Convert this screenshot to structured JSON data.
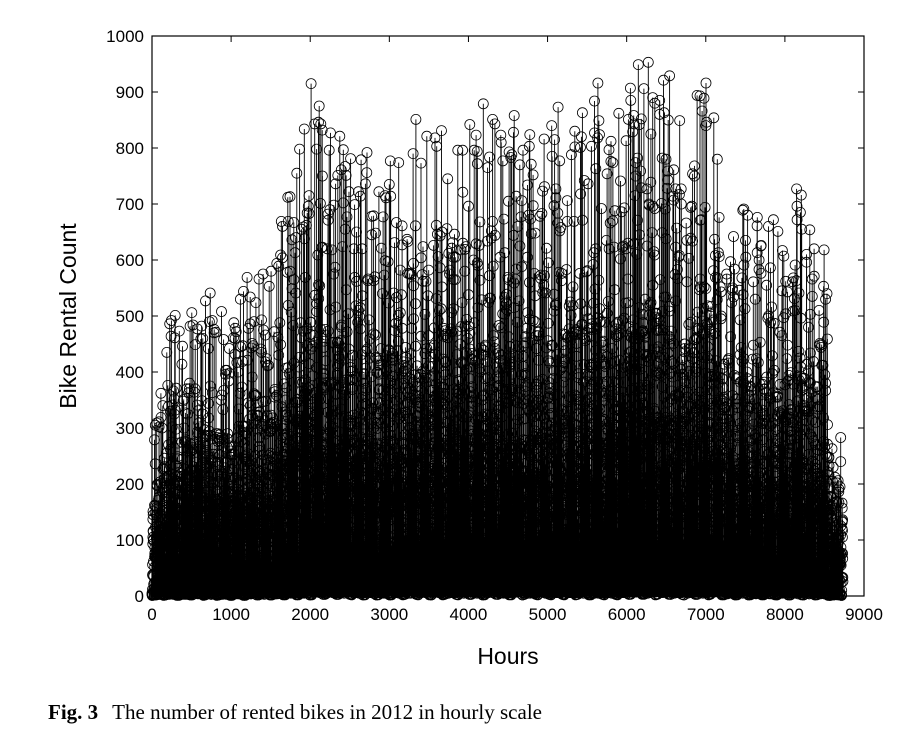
{
  "chart_data": {
    "type": "stem",
    "xlabel": "Hours",
    "ylabel": "Bike Rental Count",
    "xlim": [
      0,
      9000
    ],
    "ylim": [
      0,
      1000
    ],
    "xticks": [
      0,
      1000,
      2000,
      3000,
      4000,
      5000,
      6000,
      7000,
      8000,
      9000
    ],
    "yticks": [
      0,
      100,
      200,
      300,
      400,
      500,
      600,
      700,
      800,
      900,
      1000
    ],
    "marker": "circle",
    "color": "#000000",
    "grid": false,
    "n_points": 8734,
    "envelope_x": [
      0,
      200,
      500,
      750,
      1000,
      1300,
      1500,
      1750,
      1900,
      2000,
      2300,
      2600,
      3000,
      3300,
      3700,
      4000,
      4300,
      4600,
      4950,
      5200,
      5500,
      5700,
      6000,
      6150,
      6300,
      6500,
      6750,
      7000,
      7150,
      7300,
      7500,
      7700,
      8000,
      8100,
      8300,
      8500,
      8600,
      8734
    ],
    "envelope_y": [
      270,
      500,
      510,
      560,
      510,
      610,
      600,
      780,
      810,
      955,
      825,
      820,
      780,
      870,
      870,
      850,
      900,
      870,
      910,
      860,
      890,
      940,
      880,
      977,
      975,
      970,
      900,
      940,
      960,
      700,
      720,
      700,
      700,
      760,
      690,
      680,
      280,
      310
    ]
  },
  "caption": {
    "label": "Fig. 3",
    "text": "The number of rented bikes in 2012 in hourly scale"
  }
}
